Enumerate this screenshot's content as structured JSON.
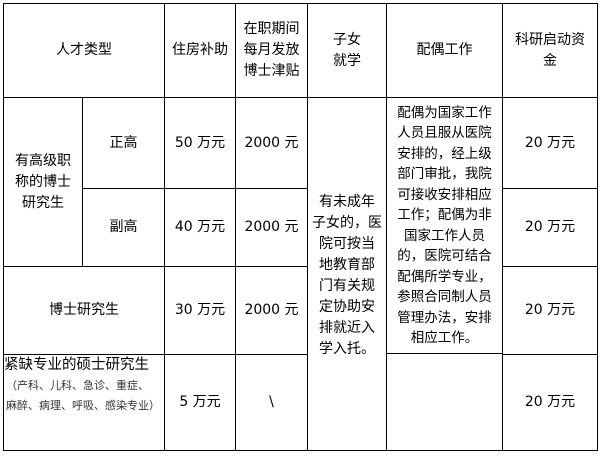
{
  "headers": {
    "talent_type": "人才类型",
    "housing": "住房补助",
    "allowance": "在职期间\n每月发放\n博士津贴",
    "children": "子女\n就学",
    "spouse": "配偶工作",
    "research": "科研启动资\n金"
  },
  "rows": {
    "senior_title_group": "有高级职\n称的博士\n研究生",
    "full_senior": {
      "label": "正高",
      "housing": "50 万元",
      "allowance": "2000 元",
      "research": "20 万元"
    },
    "associate_senior": {
      "label": "副高",
      "housing": "40 万元",
      "allowance": "2000 元",
      "research": "20 万元"
    },
    "phd": {
      "label": "博士研究生",
      "housing": "30 万元",
      "allowance": "2000 元",
      "research": "20 万元"
    },
    "master": {
      "label": "紧缺专业的硕士研究生",
      "note": "（产科、儿科、急诊、重症、\n麻醉、病理、呼吸、感染专业）",
      "housing": "5 万元",
      "allowance": "\\",
      "research": "20 万元"
    }
  },
  "children_policy": "有未成年\n子女的，医\n院可按当\n地教育部\n门有关规\n定协助安\n排就近入\n学入托。",
  "spouse_policy": "配偶为国家工作\n人员且服从医院\n安排的，经上级\n部门审批，我院\n可接收安排相应\n工作；配偶为非\n国家工作人员\n的，医院可结合\n配偶所学专业，\n参照合同制人员\n管理办法，安排\n相应工作。"
}
